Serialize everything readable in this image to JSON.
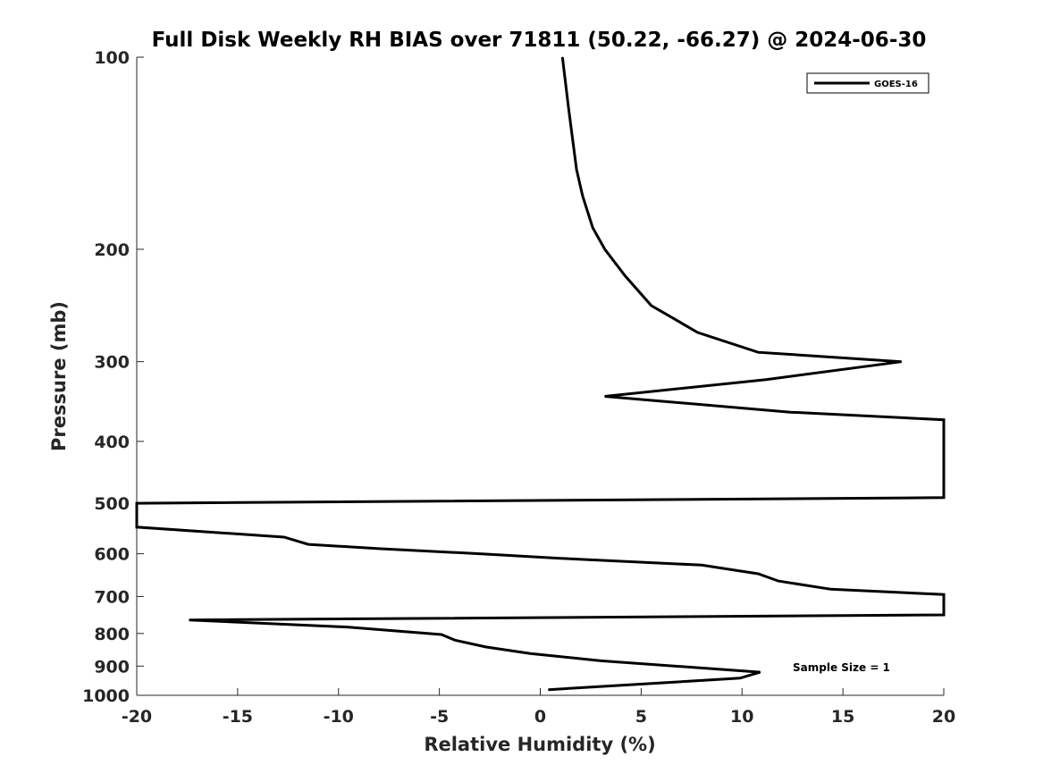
{
  "chart_data": {
    "type": "line",
    "title": "Full Disk Weekly RH BIAS over 71811 (50.22, -66.27) @ 2024-06-30",
    "xlabel": "Relative Humidity (%)",
    "ylabel": "Pressure (mb)",
    "xlim": [
      -20,
      20
    ],
    "ylim": [
      1000,
      100
    ],
    "y_scale": "log",
    "y_reversed": true,
    "grid": false,
    "legend_position": "top-right",
    "x_ticks": [
      "-20",
      "-15",
      "-10",
      "-5",
      "0",
      "5",
      "10",
      "15",
      "20"
    ],
    "y_ticks": [
      "100",
      "200",
      "300",
      "400",
      "500",
      "600",
      "700",
      "800",
      "900",
      "1000"
    ],
    "series": [
      {
        "name": "GOES-16",
        "color": "#000000",
        "points": [
          [
            1.1,
            100
          ],
          [
            1.4,
            120
          ],
          [
            1.8,
            150
          ],
          [
            2.1,
            165
          ],
          [
            2.6,
            185
          ],
          [
            3.2,
            200
          ],
          [
            4.2,
            220
          ],
          [
            5.5,
            245
          ],
          [
            7.8,
            270
          ],
          [
            10.8,
            290
          ],
          [
            17.9,
            300
          ],
          [
            11.2,
            320
          ],
          [
            3.2,
            340
          ],
          [
            12.4,
            360
          ],
          [
            20.0,
            370
          ],
          [
            20.0,
            490
          ],
          [
            -20.0,
            500
          ],
          [
            -20.0,
            545
          ],
          [
            -12.7,
            565
          ],
          [
            -11.5,
            580
          ],
          [
            -8.0,
            589
          ],
          [
            -3.0,
            600
          ],
          [
            1.0,
            610
          ],
          [
            8.0,
            625
          ],
          [
            10.8,
            645
          ],
          [
            11.8,
            662
          ],
          [
            14.4,
            682
          ],
          [
            20.0,
            695
          ],
          [
            20.0,
            748
          ],
          [
            -17.4,
            762
          ],
          [
            -9.5,
            782
          ],
          [
            -4.9,
            803
          ],
          [
            -4.2,
            820
          ],
          [
            -2.7,
            840
          ],
          [
            -0.5,
            860
          ],
          [
            3.0,
            883
          ],
          [
            10.9,
            920
          ],
          [
            9.9,
            940
          ],
          [
            0.4,
            980
          ]
        ]
      }
    ],
    "annotations": [
      "Sample Size = 1"
    ]
  }
}
